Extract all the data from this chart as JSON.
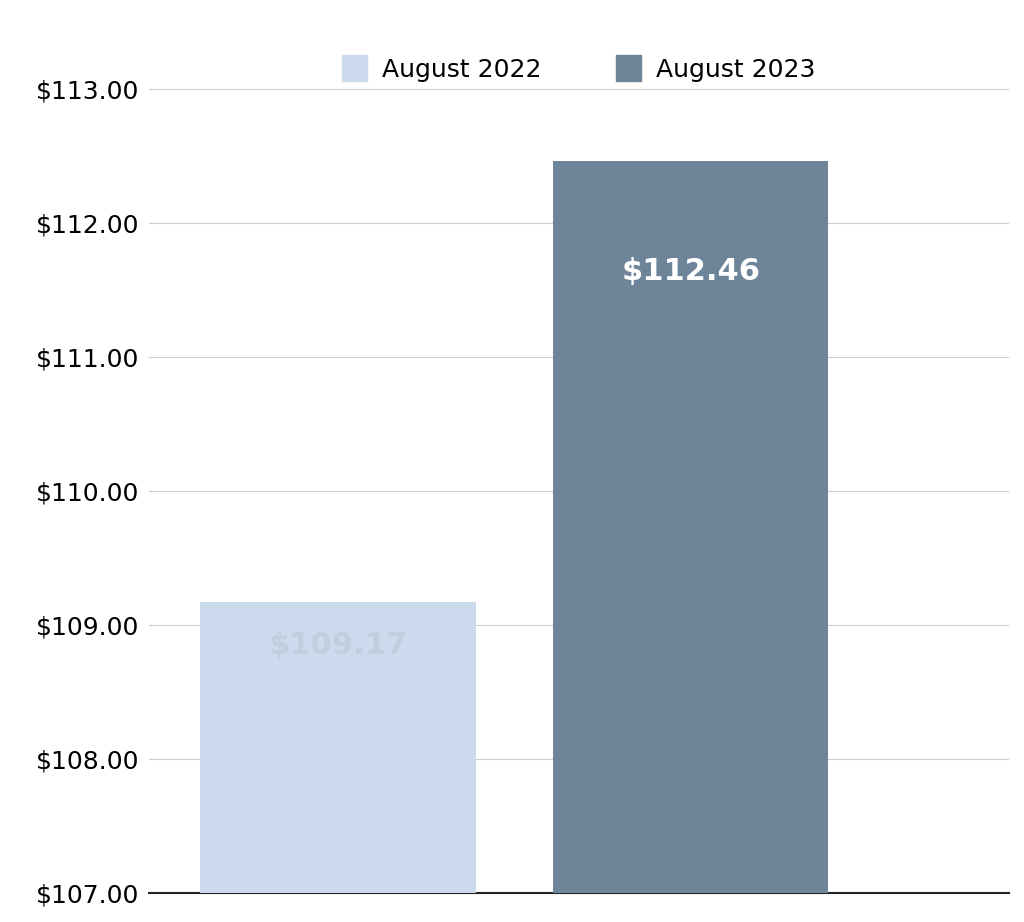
{
  "categories": [
    "August 2022",
    "August 2023"
  ],
  "values": [
    109.17,
    112.46
  ],
  "bar_colors": [
    "#ccdaed",
    "#6e8499"
  ],
  "label_color_2022": "#c0cfe0",
  "label_color_2023": "#ffffff",
  "label_texts": [
    "$109.17",
    "$112.46"
  ],
  "ylim": [
    107.0,
    113.0
  ],
  "yticks": [
    107.0,
    108.0,
    109.0,
    110.0,
    111.0,
    112.0,
    113.0
  ],
  "background_color": "#ffffff",
  "grid_color": "#cccccc",
  "bar_label_fontsize": 22,
  "tick_fontsize": 18,
  "legend_fontsize": 18,
  "bar_width": 0.32,
  "x_positions": [
    0.22,
    0.63
  ],
  "xlim": [
    0.0,
    1.0
  ]
}
